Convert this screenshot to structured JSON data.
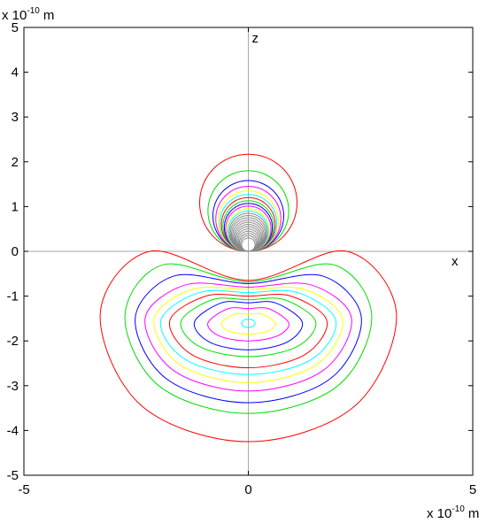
{
  "chart_data": {
    "type": "contour",
    "xlim": [
      -5,
      5
    ],
    "ylim": [
      -5,
      5
    ],
    "xticks": [
      -5,
      0,
      5
    ],
    "yticks": [
      -5,
      -4,
      -3,
      -2,
      -1,
      0,
      1,
      2,
      3,
      4,
      5
    ],
    "x_unit": {
      "base": "x 10",
      "exp": "-10",
      "unit": "m"
    },
    "y_unit": {
      "base": "x 10",
      "exp": "-10",
      "unit": "m"
    },
    "x_axis_label": "x",
    "z_axis_label": "z",
    "upper_lobe": [
      {
        "color": "#ff0000",
        "top": 2.17
      },
      {
        "color": "#00dd00",
        "top": 1.8
      },
      {
        "color": "#0000ff",
        "top": 1.58
      },
      {
        "color": "#ff00ff",
        "top": 1.45
      },
      {
        "color": "#ffff00",
        "top": 1.35
      },
      {
        "color": "#00ffff",
        "top": 1.27
      },
      {
        "color": "#ff0000",
        "top": 1.2
      },
      {
        "color": "#00dd00",
        "top": 1.13
      },
      {
        "color": "#0000ff",
        "top": 1.07
      },
      {
        "color": "#ff00ff",
        "top": 1.01
      },
      {
        "color": "#ffff00",
        "top": 0.95
      },
      {
        "color": "#00ffff",
        "top": 0.9
      },
      {
        "color": "#888888",
        "top": 0.85
      },
      {
        "color": "#888888",
        "top": 0.8
      },
      {
        "color": "#888888",
        "top": 0.75
      },
      {
        "color": "#888888",
        "top": 0.7
      },
      {
        "color": "#888888",
        "top": 0.65
      },
      {
        "color": "#888888",
        "top": 0.6
      },
      {
        "color": "#888888",
        "top": 0.55
      },
      {
        "color": "#888888",
        "top": 0.5
      },
      {
        "color": "#888888",
        "top": 0.45
      },
      {
        "color": "#888888",
        "top": 0.4
      },
      {
        "color": "#888888",
        "top": 0.35
      },
      {
        "color": "#888888",
        "top": 0.3
      }
    ],
    "lower_lobe": [
      {
        "color": "#ff0000",
        "top": -0.65,
        "bottom": -4.25,
        "right": 3.3,
        "mid": -1.4,
        "shoulder": 0.0,
        "shoulder_x": 2.2
      },
      {
        "color": "#00dd00",
        "top": -0.68,
        "bottom": -3.62,
        "right": 2.75,
        "mid": -1.45,
        "shoulder": -0.3,
        "shoulder_x": 1.9
      },
      {
        "color": "#0000ff",
        "top": -0.72,
        "bottom": -3.38,
        "right": 2.52,
        "mid": -1.5,
        "shoulder": -0.55,
        "shoulder_x": 1.65
      },
      {
        "color": "#ff00ff",
        "top": -0.8,
        "bottom": -3.12,
        "right": 2.3,
        "mid": -1.5,
        "shoulder": -0.75,
        "shoulder_x": 1.4
      },
      {
        "color": "#ffff00",
        "top": -0.85,
        "bottom": -2.93,
        "right": 2.1,
        "mid": -1.52,
        "shoulder": -0.85,
        "shoulder_x": 1.25
      },
      {
        "color": "#00ffff",
        "top": -0.92,
        "bottom": -2.75,
        "right": 1.95,
        "mid": -1.55,
        "shoulder": -0.92,
        "shoulder_x": 1.1
      },
      {
        "color": "#ff0000",
        "top": -1.0,
        "bottom": -2.6,
        "right": 1.75,
        "mid": -1.55,
        "shoulder": -1.0,
        "shoulder_x": 0.95
      },
      {
        "color": "#00dd00",
        "top": -1.08,
        "bottom": -2.35,
        "right": 1.5,
        "mid": -1.57,
        "shoulder": -1.08,
        "shoulder_x": 0.8
      },
      {
        "color": "#0000ff",
        "top": -1.15,
        "bottom": -2.2,
        "right": 1.2,
        "mid": -1.58,
        "shoulder": -1.15,
        "shoulder_x": 0.6
      },
      {
        "color": "#ff00ff",
        "top": -1.28,
        "bottom": -2.0,
        "right": 0.9,
        "mid": -1.6,
        "shoulder": -1.28,
        "shoulder_x": 0.45
      },
      {
        "color": "#ffff00",
        "top": -1.4,
        "bottom": -1.85,
        "right": 0.6,
        "mid": -1.6,
        "shoulder": -1.4,
        "shoulder_x": 0.3
      },
      {
        "color": "#00ffff",
        "top": -1.52,
        "bottom": -1.7,
        "right": 0.15,
        "mid": -1.6,
        "shoulder": -1.52,
        "shoulder_x": 0.08
      }
    ]
  }
}
